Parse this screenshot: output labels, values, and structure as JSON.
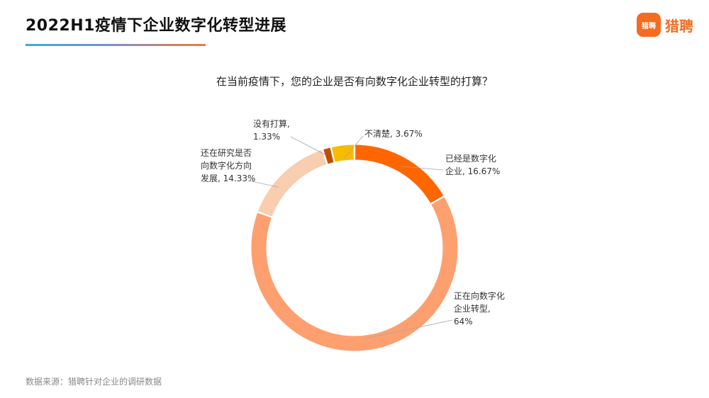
{
  "header": {
    "title": "2022H1疫情下企业数字化转型进展",
    "logo_mark": "猎聘",
    "logo_text": "猎聘"
  },
  "chart_data": {
    "type": "pie",
    "variant": "donut",
    "title": "在当前疫情下，您的企业是否有向数字化企业转型的打算？",
    "slices": [
      {
        "label_lines": [
          "已经是数字化",
          "企业, 16.67%"
        ],
        "value": 16.67,
        "color": "#ff6600"
      },
      {
        "label_lines": [
          "正在向数字化",
          "企业转型,",
          "64%"
        ],
        "value": 64,
        "color": "#fe9f70"
      },
      {
        "label_lines": [
          "还在研究是否",
          "向数字化方向",
          "发展, 14.33%"
        ],
        "value": 14.33,
        "color": "#f8cdb0"
      },
      {
        "label_lines": [
          "没有打算,",
          "1.33%"
        ],
        "value": 1.33,
        "color": "#bf4f00"
      },
      {
        "label_lines": [
          "不清楚, 3.67%"
        ],
        "value": 3.67,
        "color": "#f8bb00"
      }
    ]
  },
  "footer": {
    "source": "数据来源：猎聘针对企业的调研数据"
  }
}
